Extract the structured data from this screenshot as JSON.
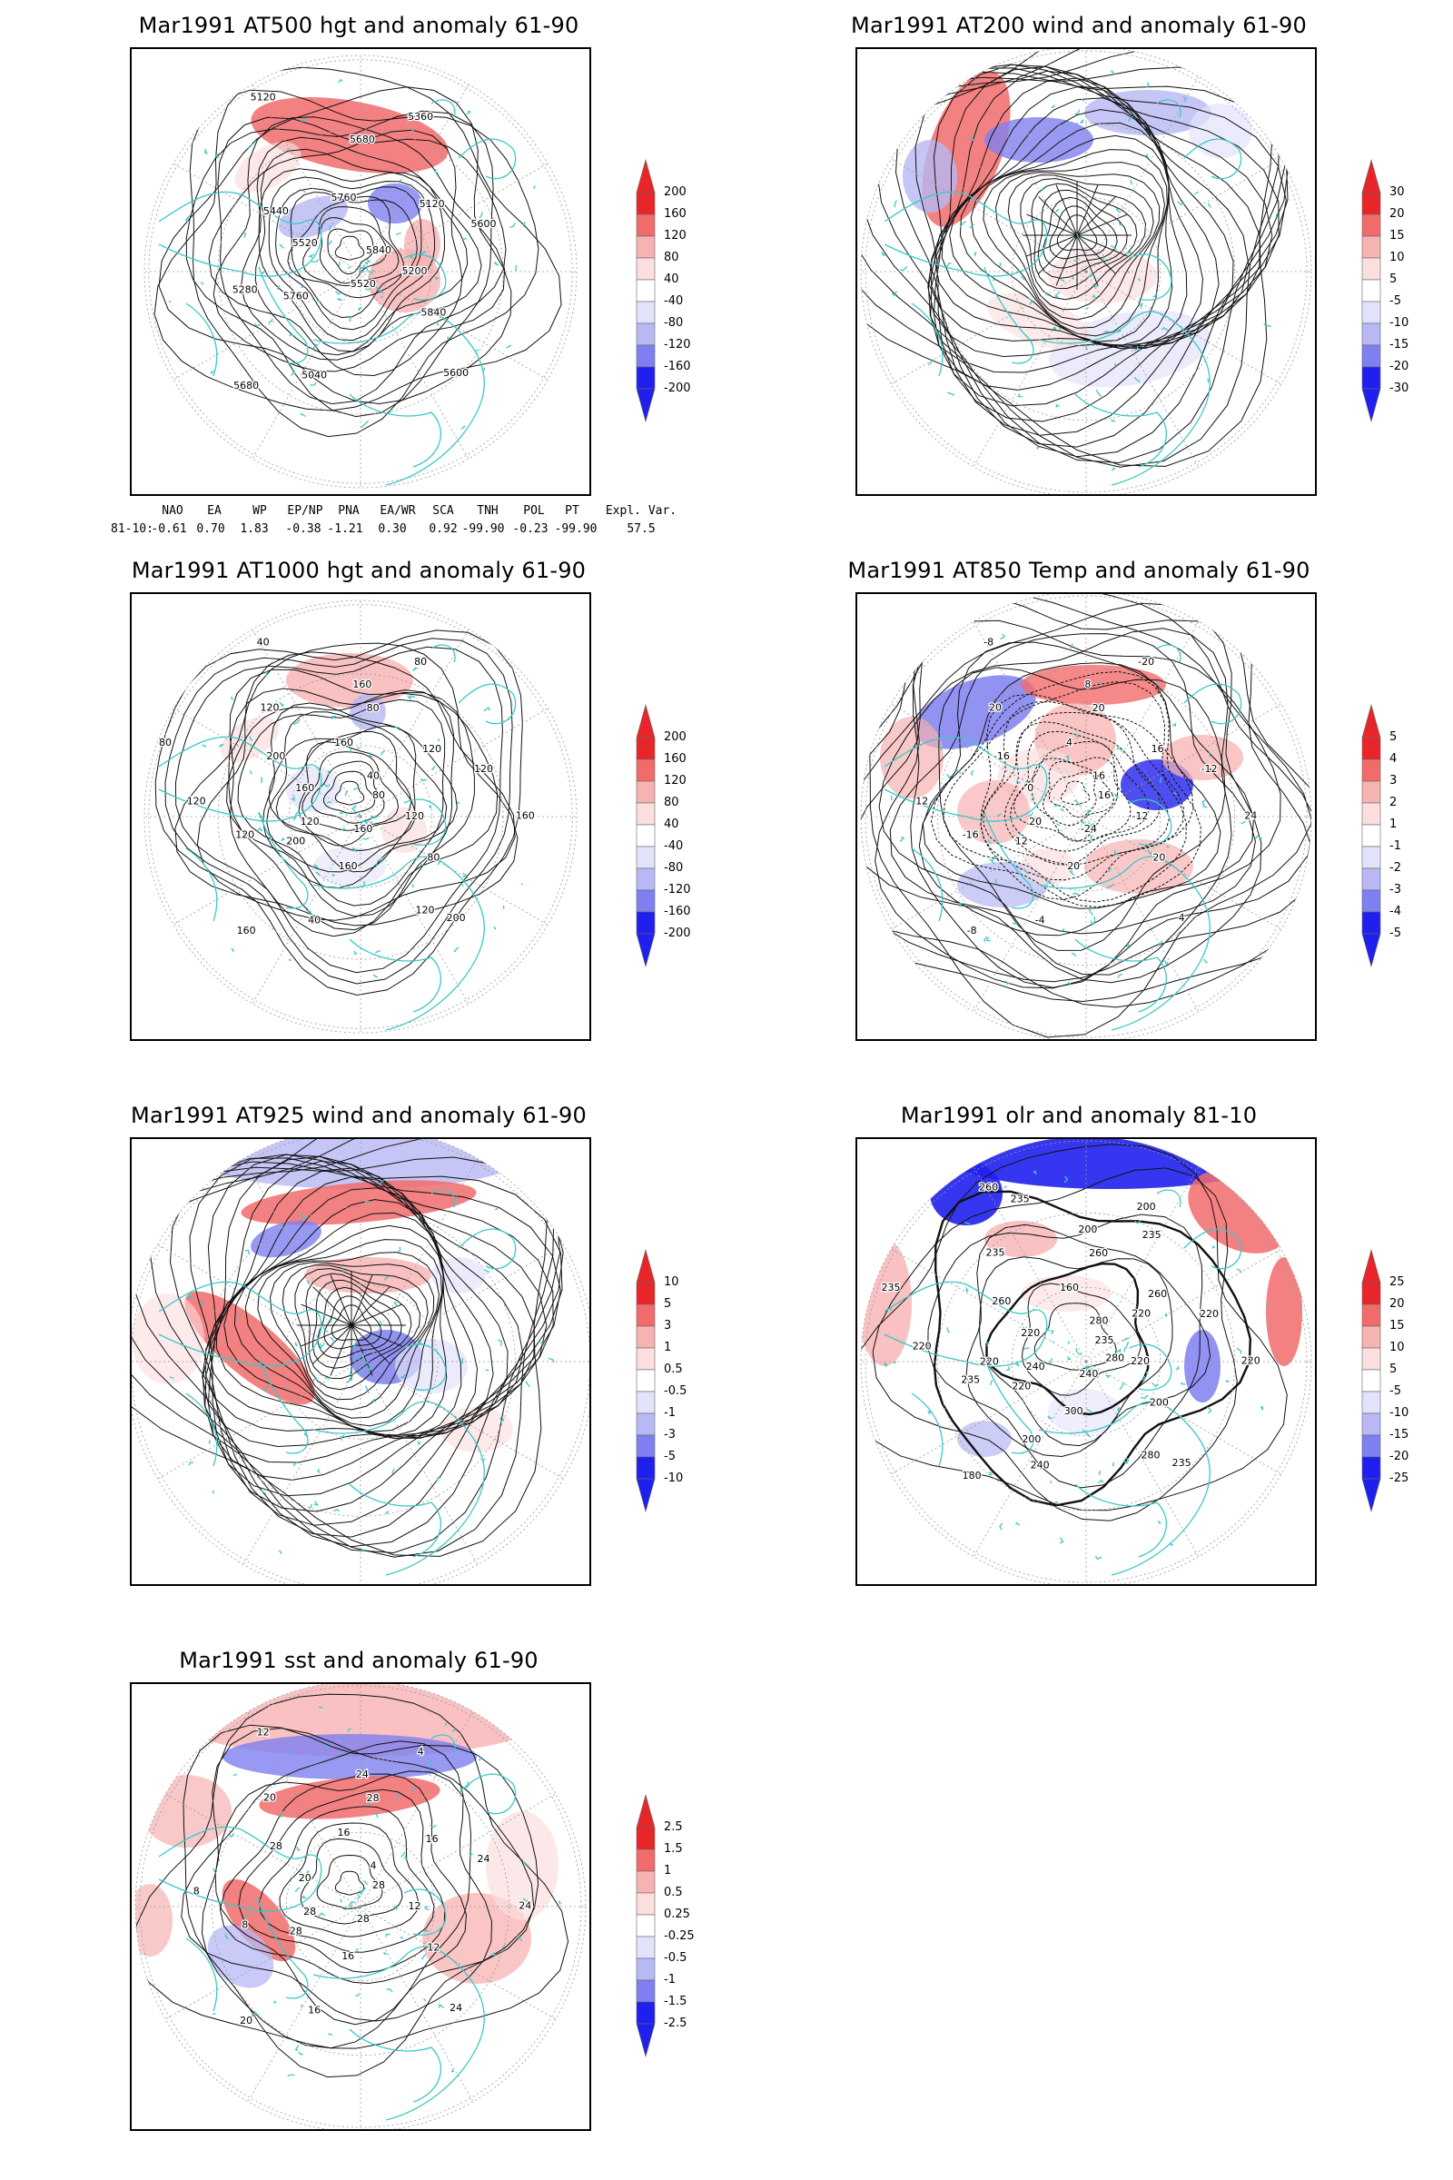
{
  "colors": {
    "coast": "#3cc8c8",
    "contour": "#111111",
    "grid": "#9a9a9a",
    "red_strong": "#e8262a",
    "red_mid": "#f26b6b",
    "red_light": "#f7b2b2",
    "red_faint": "#fbdede",
    "blue_faint": "#e2e3fb",
    "blue_light": "#b7b8f4",
    "blue_mid": "#7e7ff0",
    "blue_strong": "#2020ee"
  },
  "panels": [
    {
      "id": "at500",
      "title": "Mar1991 AT500 hgt and anomaly 61-90",
      "colorbar": [
        "200",
        "160",
        "120",
        "80",
        "40",
        "-40",
        "-80",
        "-120",
        "-160",
        "-200"
      ],
      "contour_labels": [
        "5840",
        "5760",
        "5680",
        "5600",
        "5520",
        "5120",
        "5040",
        "5120",
        "5200",
        "5280",
        "5360",
        "5520",
        "5440",
        "5600",
        "5680",
        "5760",
        "5840"
      ]
    },
    {
      "id": "at200",
      "title": "Mar1991 AT200 wind and anomaly 61-90",
      "colorbar": [
        "30",
        "20",
        "15",
        "10",
        "5",
        "-5",
        "-10",
        "-15",
        "-20",
        "-30"
      ],
      "contour_labels": []
    },
    {
      "id": "at1000",
      "title": "Mar1991 AT1000 hgt and anomaly 61-90",
      "colorbar": [
        "200",
        "160",
        "120",
        "80",
        "40",
        "-40",
        "-80",
        "-120",
        "-160",
        "-200"
      ],
      "contour_labels": [
        "80",
        "200",
        "160",
        "200",
        "160",
        "120",
        "40",
        "40",
        "120",
        "120",
        "80",
        "160",
        "200",
        "120",
        "160",
        "160",
        "80",
        "120",
        "40",
        "160",
        "120",
        "160",
        "120",
        "80",
        "120",
        "80"
      ]
    },
    {
      "id": "at850",
      "title": "Mar1991 AT850 Temp and anomaly 61-90",
      "colorbar": [
        "5",
        "4",
        "3",
        "2",
        "1",
        "-1",
        "-2",
        "-3",
        "-4",
        "-5"
      ],
      "contour_labels": [
        "16",
        "12",
        "8",
        "4",
        "0",
        "16",
        "-4",
        "-8",
        "-12",
        "-16",
        "-20",
        "-24",
        "-16",
        "-12",
        "-8",
        "4",
        "20",
        "12",
        "16",
        "20",
        "20",
        "24",
        "20",
        "20"
      ]
    },
    {
      "id": "at925",
      "title": "Mar1991 AT925 wind and anomaly 61-90",
      "colorbar": [
        "10",
        "5",
        "3",
        "1",
        "0.5",
        "-0.5",
        "-1",
        "-3",
        "-5",
        "-10"
      ],
      "contour_labels": []
    },
    {
      "id": "olr",
      "title": "Mar1991 olr and anomaly 81-10",
      "colorbar": [
        "25",
        "20",
        "15",
        "10",
        "5",
        "-5",
        "-10",
        "-15",
        "-20",
        "-25"
      ],
      "contour_labels": [
        "235",
        "220",
        "200",
        "235",
        "220",
        "260",
        "240",
        "260",
        "220",
        "235",
        "200",
        "240",
        "260",
        "220",
        "180",
        "160",
        "200",
        "220",
        "280",
        "300",
        "235",
        "220",
        "240",
        "260",
        "280",
        "235",
        "220",
        "200",
        "235",
        "280",
        "220",
        "235"
      ]
    },
    {
      "id": "sst",
      "title": "Mar1991 sst and anomaly 61-90",
      "colorbar": [
        "2.5",
        "1.5",
        "1",
        "0.5",
        "0.25",
        "-0.25",
        "-0.5",
        "-1",
        "-1.5",
        "-2.5"
      ],
      "contour_labels": [
        "28",
        "28",
        "24",
        "24",
        "20",
        "16",
        "16",
        "12",
        "12",
        "8",
        "4",
        "28",
        "28",
        "24",
        "20",
        "16",
        "12",
        "8",
        "4",
        "16",
        "20",
        "24",
        "28",
        "28"
      ]
    }
  ],
  "teleconnection": {
    "headers": [
      "NAO",
      "EA",
      "WP",
      "EP/NP",
      "PNA",
      "EA/WR",
      "SCA",
      "TNH",
      "POL",
      "PT",
      "Expl. Var."
    ],
    "row_label": "81-10:",
    "values": [
      "-0.61",
      "0.70",
      "1.83",
      "-0.38",
      "-1.21",
      "0.30",
      "0.92",
      "-99.90",
      "-0.23",
      "-99.90",
      "57.5"
    ]
  }
}
